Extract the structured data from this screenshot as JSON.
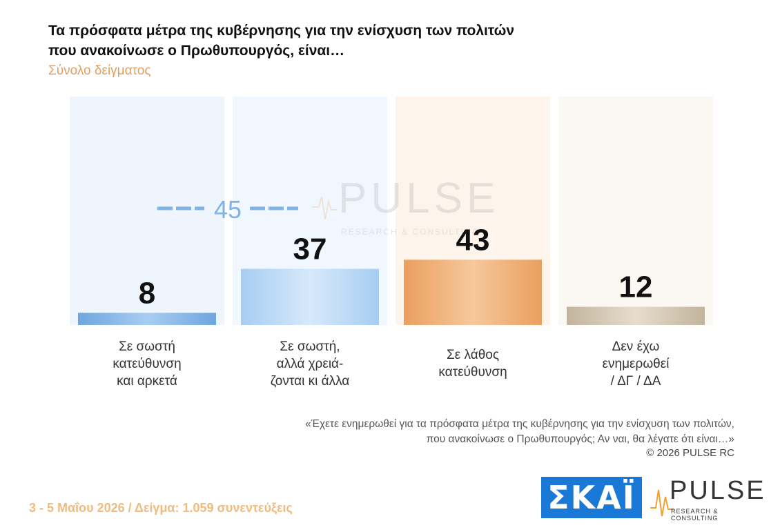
{
  "header": {
    "title_line1": "Τα πρόσφατα μέτρα της κυβέρνησης για την ενίσχυση των πολιτών",
    "title_line2": "που ανακοίνωσε ο Πρωθυπουργός, είναι…",
    "subtitle": "Σύνολο δείγματος"
  },
  "chart_data": {
    "type": "bar",
    "categories": [
      [
        "Σε σωστή",
        "κατεύθυνση",
        "και αρκετά"
      ],
      [
        "Σε σωστή,",
        "αλλά χρειά-",
        "ζονται κι άλλα"
      ],
      [
        "Σε λάθος",
        "κατεύθυνση"
      ],
      [
        "Δεν έχω",
        "ενημερωθεί",
        "/ ΔΓ / ΔΑ"
      ]
    ],
    "values": [
      8,
      37,
      43,
      12
    ],
    "bar_colors": [
      "#7fb3e6",
      "#b8d9f5",
      "#f0b27a",
      "#cfc2ac"
    ],
    "bg_colors": [
      "#eef5fd",
      "#f1f7fe",
      "#fdf4ec",
      "#fbf8f4"
    ],
    "group_total": {
      "value": "45",
      "color": "#7fb3e6"
    },
    "ylim": [
      0,
      100
    ]
  },
  "watermark": {
    "word": "PULSE",
    "sub": "RESEARCH & CONSULTING"
  },
  "notes": {
    "question_line1": "«Έχετε ενημερωθεί για τα πρόσφατα μέτρα της κυβέρνησης για την ενίσχυση των πολιτών,",
    "question_line2": "που ανακοίνωσε ο Πρωθυπουργός; Αν ναι, θα λέγατε ότι είναι…»",
    "copyright": "©  2026  PULSE RC"
  },
  "footer": {
    "text": "3 - 5  Μαΐου 2026  /  Δείγμα:  1.059 συνεντεύξεις"
  },
  "logos": {
    "skai": "ΣΚΑΪ",
    "pulse_word": "PULSE",
    "pulse_sub": "RESEARCH & CONSULTING",
    "pulse_brand_color": "#f0a030"
  }
}
